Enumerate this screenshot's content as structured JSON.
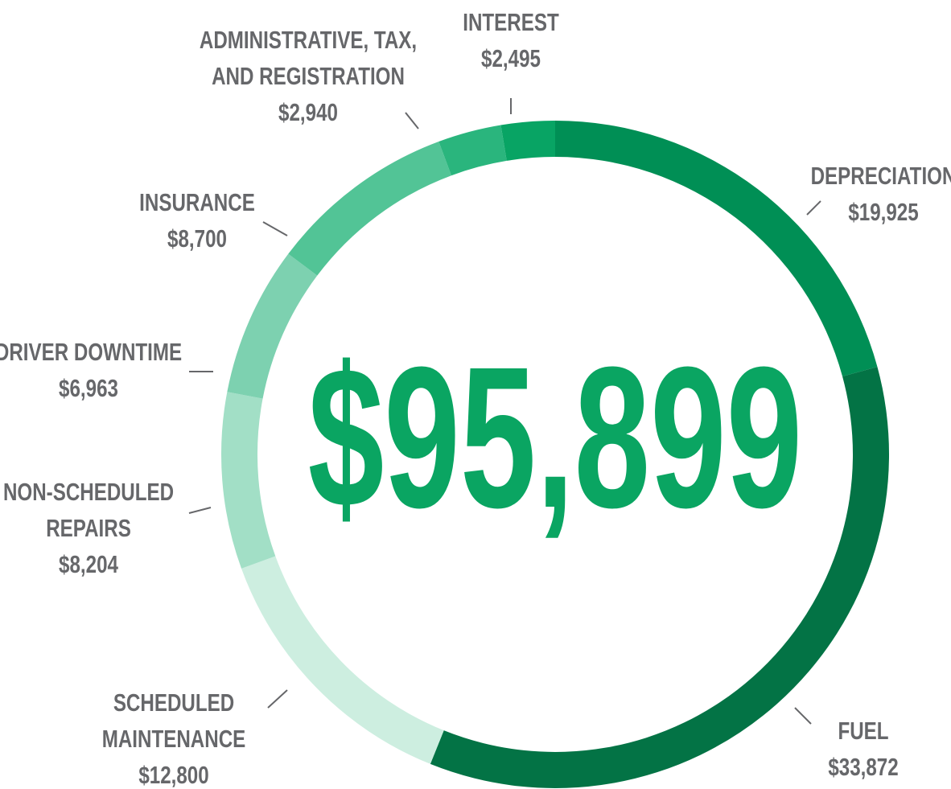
{
  "chart_data": {
    "type": "pie",
    "center_label": "$95,899",
    "categories": [
      "DEPRECIATION",
      "FUEL",
      "SCHEDULED\nMAINTENANCE",
      "NON-SCHEDULED\nREPAIRS",
      "DRIVER DOWNTIME",
      "INSURANCE",
      "ADMINISTRATIVE, TAX,\nAND REGISTRATION",
      "INTEREST"
    ],
    "values": [
      19925,
      33872,
      12800,
      8204,
      6963,
      8700,
      2940,
      2495
    ],
    "value_labels": [
      "$19,925",
      "$33,872",
      "$12,800",
      "$8,204",
      "$6,963",
      "$8,700",
      "$2,940",
      "$2,495"
    ],
    "colors": [
      "#008f55",
      "#037345",
      "#cdeee0",
      "#a2dfc6",
      "#7dd1b0",
      "#52c496",
      "#2ab57d",
      "#08a464"
    ]
  }
}
